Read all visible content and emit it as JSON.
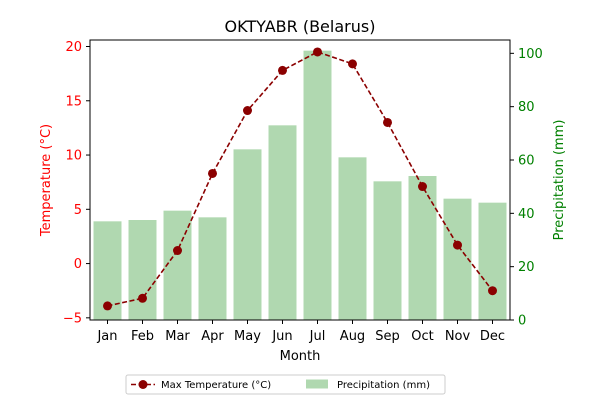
{
  "chart_data": {
    "type": "bar+line",
    "title": "OKTYABR (Belarus)",
    "xlabel": "Month",
    "categories": [
      "Jan",
      "Feb",
      "Mar",
      "Apr",
      "May",
      "Jun",
      "Jul",
      "Aug",
      "Sep",
      "Oct",
      "Nov",
      "Dec"
    ],
    "y_left": {
      "label": "Temperature (°C)",
      "ylim": [
        -5.2,
        20.6
      ],
      "ticks": [
        -5,
        0,
        5,
        10,
        15,
        20
      ],
      "color": "#ff0000"
    },
    "y_right": {
      "label": "Precipitation (mm)",
      "ylim": [
        0,
        105
      ],
      "ticks": [
        0,
        20,
        40,
        60,
        80,
        100
      ],
      "color": "#008000"
    },
    "series": [
      {
        "name": "Max Temperature (°C)",
        "kind": "line",
        "axis": "left",
        "color": "#8b0000",
        "values": [
          -3.9,
          -3.2,
          1.2,
          8.3,
          14.1,
          17.8,
          19.5,
          18.4,
          13.0,
          7.1,
          1.7,
          -2.5
        ]
      },
      {
        "name": "Precipitation (mm)",
        "kind": "bar",
        "axis": "right",
        "color": "#b0d8b0",
        "values": [
          37,
          37.5,
          41,
          38.5,
          64,
          73,
          101,
          61,
          52,
          54,
          45.5,
          44
        ]
      }
    ],
    "grid": false,
    "legend_position": "bottom-center"
  }
}
